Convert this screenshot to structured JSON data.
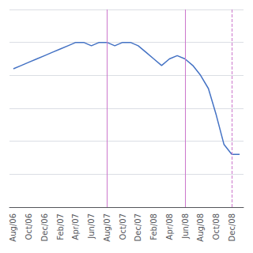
{
  "chart_data": {
    "type": "line",
    "categories": [
      "Aug/06",
      null,
      "Oct/06",
      null,
      "Dec/06",
      null,
      "Feb/07",
      null,
      "Apr/07",
      null,
      "Jun/07",
      null,
      "Aug/07",
      null,
      "Oct/07",
      null,
      "Dec/07",
      null,
      "Feb/08",
      null,
      "Apr/08",
      null,
      "Jun/08",
      null,
      "Aug/08",
      null,
      "Oct/08",
      null,
      "Dec/08",
      null
    ],
    "values": [
      72,
      73,
      74,
      75,
      76,
      77,
      78,
      79,
      80,
      80,
      79,
      80,
      80,
      79,
      80,
      80,
      79,
      77,
      75,
      73,
      75,
      76,
      75,
      73,
      70,
      66,
      58,
      49,
      46,
      46
    ],
    "color": "#4472c4",
    "ylim": [
      30,
      90
    ],
    "yticks": [
      30,
      40,
      50,
      60,
      70,
      80,
      90
    ],
    "grid": true,
    "tick_labels": "x",
    "vlines": [
      {
        "x": "Aug/07",
        "line_style": "solid",
        "color": "#cc77cc"
      },
      {
        "x": "Jun/08",
        "line_style": "solid",
        "color": "#cc77cc"
      },
      {
        "x": "Dec/08",
        "line_style": "dashed",
        "color": "#cc77cc"
      }
    ]
  }
}
